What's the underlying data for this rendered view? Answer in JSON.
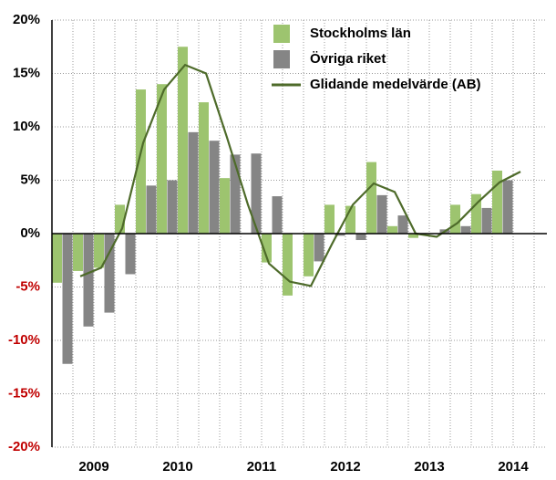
{
  "chart_data": {
    "type": "bar",
    "categories": [
      null,
      "2009",
      null,
      null,
      null,
      "2010",
      null,
      null,
      null,
      "2011",
      null,
      null,
      null,
      "2012",
      null,
      null,
      null,
      "2013",
      null,
      null,
      null,
      "2014"
    ],
    "series": [
      {
        "name": "Stockholms län",
        "color": "#9dc46f",
        "values": [
          -4.6,
          -3.5,
          -3.2,
          2.7,
          13.5,
          14.0,
          17.5,
          12.3,
          5.2,
          0.0,
          -2.7,
          -5.8,
          -4.0,
          2.7,
          2.6,
          6.7,
          0.7,
          -0.4,
          0.0,
          2.7,
          3.7,
          5.9
        ]
      },
      {
        "name": "Övriga riket",
        "color": "#858585",
        "values": [
          -12.2,
          -8.7,
          -7.4,
          -3.8,
          4.5,
          5.0,
          9.5,
          8.7,
          7.4,
          7.5,
          3.5,
          0.0,
          -2.6,
          -0.2,
          -0.6,
          3.6,
          1.7,
          0.0,
          0.4,
          0.7,
          2.4,
          5.0
        ]
      },
      {
        "name": "Glidande medelvärde (AB)",
        "color": "#4e6b2a",
        "type": "line",
        "values": [
          -4.0,
          -3.2,
          0.5,
          8.5,
          13.5,
          15.8,
          15.0,
          9.0,
          2.7,
          -2.8,
          -4.5,
          -4.9,
          -1.0,
          2.7,
          4.7,
          3.9,
          0.0,
          -0.3,
          1.0,
          3.0,
          4.8,
          5.8
        ]
      }
    ],
    "ylim": [
      -20,
      20
    ],
    "yticks": [
      {
        "value": -20,
        "label": "-20%"
      },
      {
        "value": -15,
        "label": "-15%"
      },
      {
        "value": -10,
        "label": "-10%"
      },
      {
        "value": -5,
        "label": "-5%"
      },
      {
        "value": 0,
        "label": "0%"
      },
      {
        "value": 5,
        "label": "5%"
      },
      {
        "value": 10,
        "label": "10%"
      },
      {
        "value": 15,
        "label": "15%"
      },
      {
        "value": 20,
        "label": "20%"
      }
    ],
    "negative_label_color": "#c00000",
    "grid": true,
    "legend": "upper right"
  }
}
